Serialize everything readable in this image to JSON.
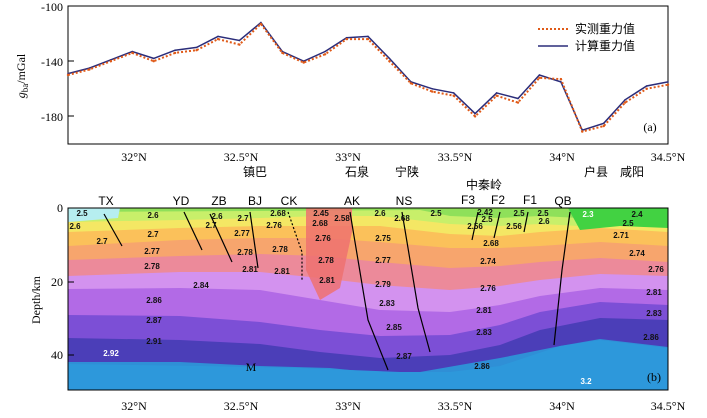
{
  "chart_data": [
    {
      "panel": "(a)",
      "type": "line",
      "ylabel_main": "g",
      "ylabel_sub": "ba",
      "ylabel_unit": "/mGal",
      "ylim": [
        -200,
        -100
      ],
      "yticks": [
        -100,
        -140,
        -180
      ],
      "xlim": [
        31.7,
        34.5
      ],
      "legend": {
        "observed": "实测重力值",
        "computed": "计算重力值",
        "position": "top-right"
      },
      "series": [
        {
          "name": "计算重力值",
          "color": "#2b2d7a",
          "x": [
            31.7,
            31.8,
            31.9,
            32.0,
            32.1,
            32.2,
            32.3,
            32.4,
            32.5,
            32.6,
            32.7,
            32.8,
            32.9,
            33.0,
            33.1,
            33.2,
            33.3,
            33.4,
            33.5,
            33.6,
            33.7,
            33.8,
            33.9,
            34.0,
            34.1,
            34.2,
            34.3,
            34.4,
            34.5
          ],
          "y": [
            -149,
            -145,
            -139,
            -133,
            -138,
            -132,
            -130,
            -122,
            -125,
            -112,
            -133,
            -140,
            -133,
            -123,
            -122,
            -138,
            -155,
            -160,
            -163,
            -178,
            -163,
            -167,
            -150,
            -155,
            -190,
            -185,
            -168,
            -158,
            -155
          ]
        },
        {
          "name": "实测重力值",
          "color": "#e05a18",
          "x": [
            31.7,
            31.8,
            31.9,
            32.0,
            32.1,
            32.2,
            32.3,
            32.4,
            32.5,
            32.6,
            32.7,
            32.8,
            32.9,
            33.0,
            33.1,
            33.2,
            33.3,
            33.4,
            33.5,
            33.6,
            33.7,
            33.8,
            33.9,
            34.0,
            34.1,
            34.2,
            34.3,
            34.4,
            34.5
          ],
          "y": [
            -150,
            -146,
            -140,
            -134,
            -140,
            -134,
            -132,
            -124,
            -128,
            -113,
            -134,
            -141,
            -135,
            -124,
            -124,
            -140,
            -156,
            -162,
            -165,
            -180,
            -165,
            -170,
            -152,
            -153,
            -191,
            -187,
            -170,
            -160,
            -157
          ]
        }
      ]
    },
    {
      "panel": "(b)",
      "type": "area",
      "ylabel": "Depth/km",
      "ylim": [
        0,
        50
      ],
      "yticks": [
        0,
        20,
        40
      ],
      "xlim": [
        31.7,
        34.5
      ],
      "xticks": [
        "32°N",
        "32.5°N",
        "33°N",
        "33.5°N",
        "34°N",
        "34.5°N"
      ],
      "moho_label": "M",
      "stations": [
        "TX",
        "YD",
        "ZB",
        "BJ",
        "CK",
        "AK",
        "NS",
        "F3",
        "F2",
        "F1",
        "QB"
      ],
      "place_names": [
        "镇巴",
        "石泉",
        "宁陕",
        "中秦岭",
        "户县",
        "咸阳"
      ],
      "densities": [
        "2.5",
        "2.6",
        "2.6",
        "2.7",
        "2.7",
        "2.77",
        "2.78",
        "2.84",
        "2.86",
        "2.87",
        "2.91",
        "2.92",
        "2.6",
        "2.7",
        "2.7",
        "2.77",
        "2.78",
        "2.81",
        "2.68",
        "2.76",
        "2.78",
        "2.81",
        "2.45",
        "2.68",
        "2.58",
        "2.76",
        "2.78",
        "2.81",
        "2.6",
        "2.68",
        "2.75",
        "2.77",
        "2.79",
        "2.83",
        "2.85",
        "2.87",
        "2.5",
        "2.42",
        "2.5",
        "2.56",
        "2.56",
        "2.5",
        "2.5",
        "2.6",
        "2.68",
        "2.74",
        "2.76",
        "2.81",
        "2.83",
        "2.86",
        "2.3",
        "2.4",
        "2.5",
        "2.71",
        "2.74",
        "2.76",
        "2.81",
        "2.83",
        "2.86",
        "3.2"
      ]
    }
  ]
}
